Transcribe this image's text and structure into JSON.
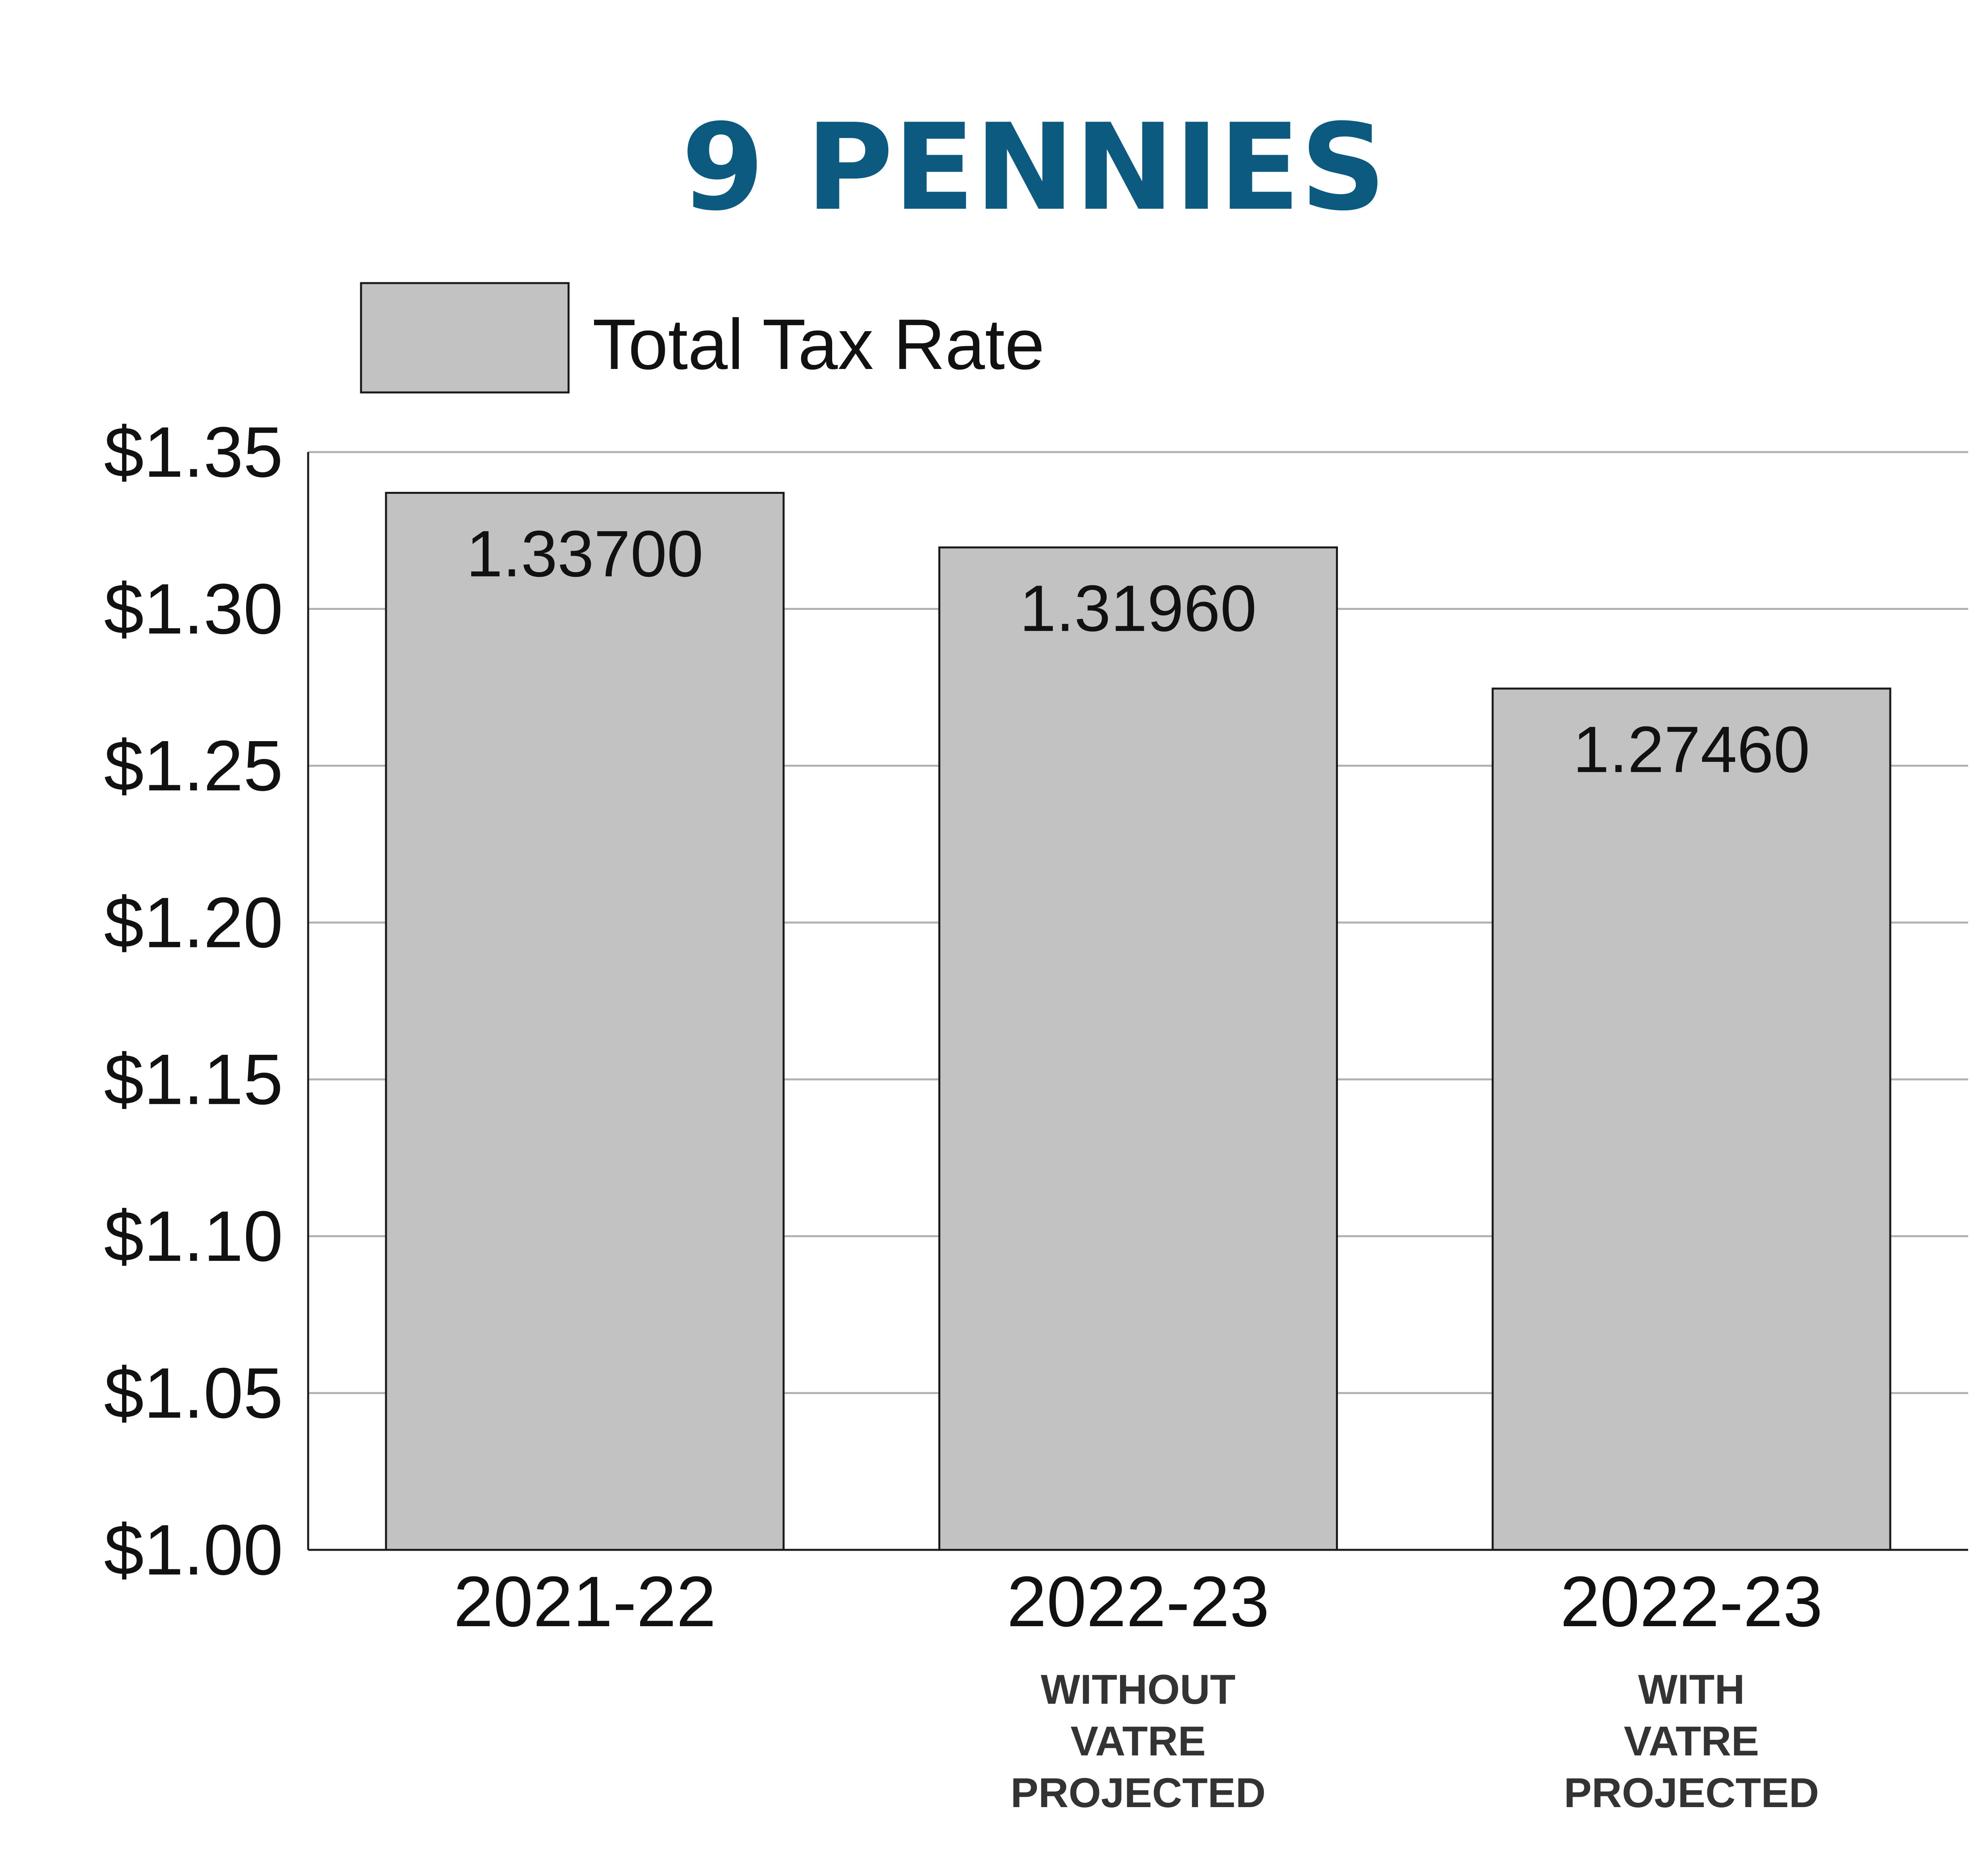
{
  "colors": {
    "title": "#0d5a80",
    "bar_fill": "#c2c2c2",
    "bar_stroke": "#1a1a1a",
    "grid": "#b0b0b0",
    "axis": "#1a1a1a",
    "text": "#111111",
    "subtext": "#333333"
  },
  "chart_data": {
    "type": "bar",
    "title": "9 PENNIES",
    "xlabel": "",
    "ylabel": "",
    "ylim": [
      1.0,
      1.35
    ],
    "yticks": [
      1.0,
      1.05,
      1.1,
      1.15,
      1.2,
      1.25,
      1.3,
      1.35
    ],
    "ytick_labels": [
      "$1.00",
      "$1.05",
      "$1.10",
      "$1.15",
      "$1.20",
      "$1.25",
      "$1.30",
      "$1.35"
    ],
    "grid": true,
    "legend_position": "top-left",
    "categories": [
      "2021-22",
      "2022-23",
      "2022-23"
    ],
    "category_sublabels": [
      [],
      [
        "WITHOUT",
        "VATRE",
        "PROJECTED"
      ],
      [
        "WITH",
        "VATRE",
        "PROJECTED"
      ]
    ],
    "series": [
      {
        "name": "Total Tax Rate",
        "values": [
          1.337,
          1.3196,
          1.2746
        ],
        "value_labels": [
          "1.33700",
          "1.31960",
          "1.27460"
        ]
      }
    ]
  }
}
